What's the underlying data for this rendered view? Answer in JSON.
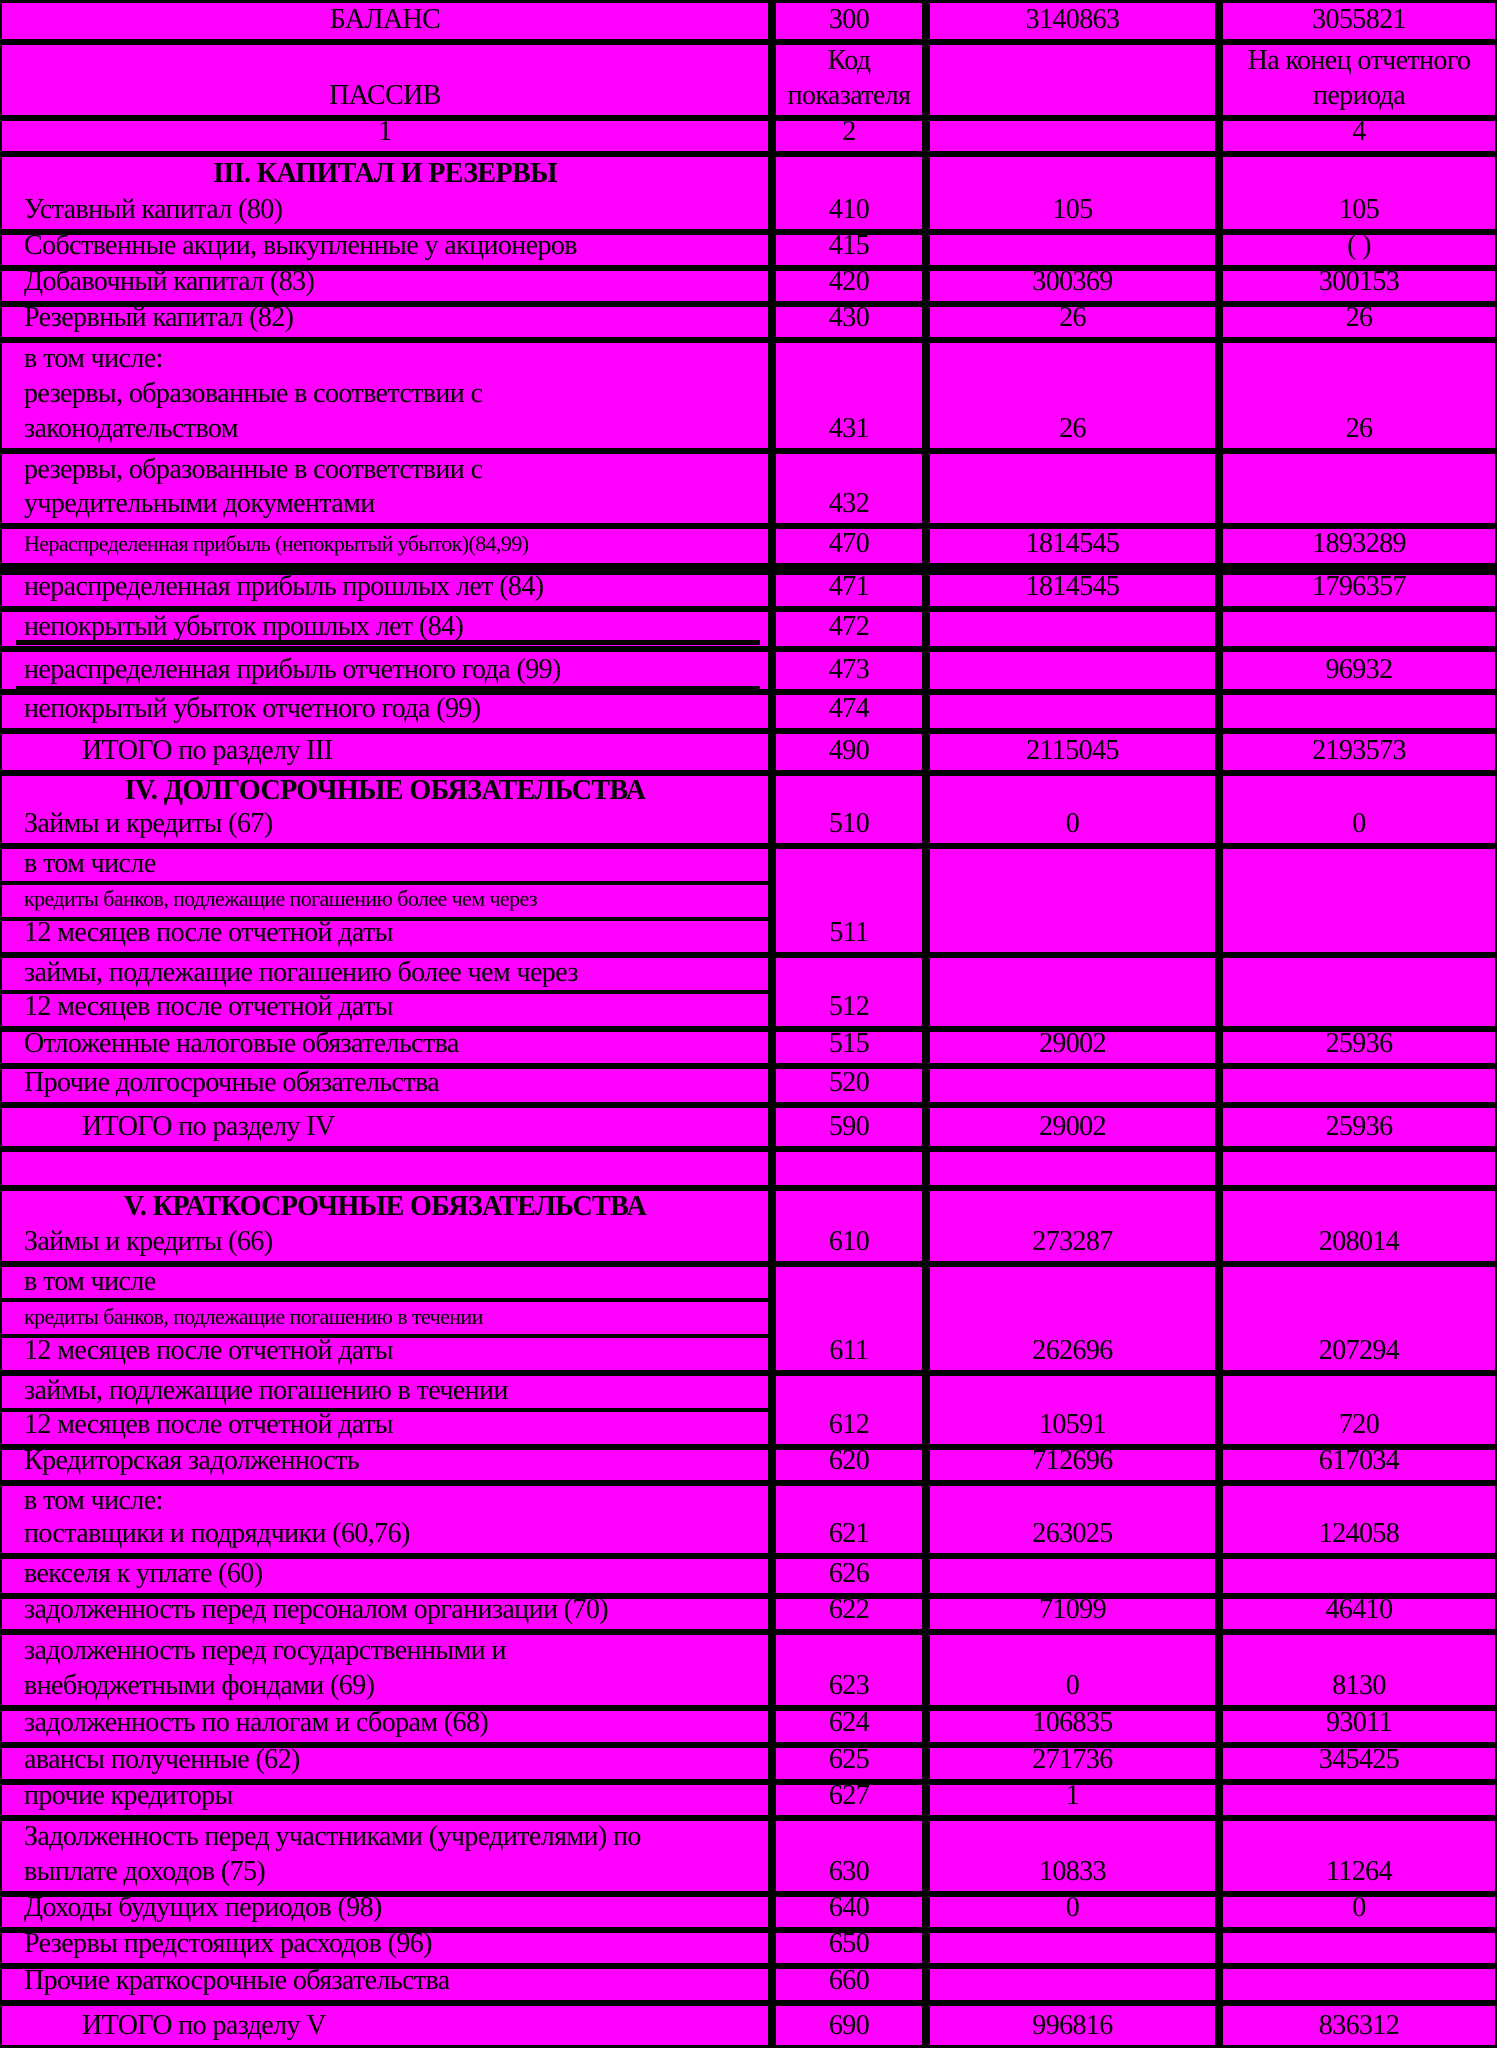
{
  "colors": {
    "cell_background": "#ff00ff",
    "border": "#000000",
    "text": "#000000"
  },
  "rows": [
    {
      "lines": [
        {
          "text": "БАЛАНС",
          "kind": "center"
        }
      ],
      "code": "300",
      "start": "3140863",
      "end": "3055821"
    },
    {
      "lines": [
        {
          "text": "ПАССИВ",
          "kind": "center"
        }
      ],
      "code_lines": [
        "Код",
        "показателя"
      ],
      "start": "",
      "end_lines": [
        "На конец отчетного",
        "периода"
      ]
    },
    {
      "lines": [
        {
          "text": "1",
          "kind": "center"
        }
      ],
      "code": "2",
      "start": "",
      "end": "4"
    },
    {
      "lines": [
        {
          "text": "III. КАПИТАЛ И РЕЗЕРВЫ",
          "kind": "heading"
        },
        {
          "text": "Уставный капитал (80)"
        }
      ],
      "code": "410",
      "start": "105",
      "end": "105"
    },
    {
      "lines": [
        {
          "text": "Собственные акции, выкупленные у акционеров"
        }
      ],
      "code": "415",
      "start": "",
      "end": "(                              )"
    },
    {
      "lines": [
        {
          "text": "Добавочный капитал (83)"
        }
      ],
      "code": "420",
      "start": "300369",
      "end": "300153"
    },
    {
      "lines": [
        {
          "text": "Резервный капитал (82)"
        }
      ],
      "code": "430",
      "start": "26",
      "end": "26"
    },
    {
      "lines": [
        {
          "text": "в том числе:"
        },
        {
          "text": "резервы, образованные в соответствии с"
        },
        {
          "text": "законодательством"
        }
      ],
      "code": "431",
      "start": "26",
      "end": "26"
    },
    {
      "lines": [
        {
          "text": "резервы, образованные в соответствии с"
        },
        {
          "text": "учредительными документами"
        }
      ],
      "code": "432",
      "start": "",
      "end": ""
    },
    {
      "lines": [
        {
          "text": "Нераспределенная прибыль (непокрытый убыток)(84,99)",
          "kind": "small"
        }
      ],
      "code": "470",
      "start": "1814545",
      "end": "1893289"
    },
    {
      "lines": [
        {
          "text": "нераспределенная прибыль прошлых лет (84)"
        }
      ],
      "code": "471",
      "start": "1814545",
      "end": "1796357"
    },
    {
      "lines": [
        {
          "text": "непокрытый убыток прошлых лет (84)"
        }
      ],
      "code": "472",
      "start": "",
      "end": ""
    },
    {
      "lines": [
        {
          "text": "нераспределенная прибыль отчетного года  (99)"
        }
      ],
      "code": "473",
      "start": "",
      "end": "96932"
    },
    {
      "lines": [
        {
          "text": "непокрытый убыток отчетного года (99)"
        }
      ],
      "code": "474",
      "start": "",
      "end": ""
    },
    {
      "lines": [
        {
          "text": "ИТОГО по разделу III",
          "kind": "indent"
        }
      ],
      "code": "490",
      "start": "2115045",
      "end": "2193573"
    },
    {
      "lines": [
        {
          "text": "IV. ДОЛГОСРОЧНЫЕ ОБЯЗАТЕЛЬСТВА",
          "kind": "heading"
        },
        {
          "text": "Займы и кредиты (67)"
        }
      ],
      "code": "510",
      "start": "0",
      "end": "0"
    },
    {
      "lines": [
        {
          "text": "в том числе"
        },
        {
          "text": "кредиты банков, подлежащие погашению более чем через",
          "kind": "small"
        },
        {
          "text": "12 месяцев после отчетной даты"
        }
      ],
      "code": "511",
      "start": "",
      "end": ""
    },
    {
      "lines": [
        {
          "text": "займы, подлежащие погашению более чем через"
        },
        {
          "text": "12 месяцев после отчетной даты"
        }
      ],
      "code": "512",
      "start": "",
      "end": ""
    },
    {
      "lines": [
        {
          "text": "Отложенные налоговые обязательства"
        }
      ],
      "code": "515",
      "start": "29002",
      "end": "25936"
    },
    {
      "lines": [
        {
          "text": "Прочие долгосрочные обязательства"
        }
      ],
      "code": "520",
      "start": "",
      "end": ""
    },
    {
      "lines": [
        {
          "text": "ИТОГО по разделу IV",
          "kind": "indent"
        }
      ],
      "code": "590",
      "start": "29002",
      "end": "25936"
    },
    {
      "lines": [],
      "code": "",
      "start": "",
      "end": ""
    },
    {
      "lines": [
        {
          "text": "V. КРАТКОСРОЧНЫЕ ОБЯЗАТЕЛЬСТВА",
          "kind": "heading"
        },
        {
          "text": "Займы и кредиты (66)"
        }
      ],
      "code": "610",
      "start": "273287",
      "end": "208014"
    },
    {
      "lines": [
        {
          "text": "в том числе"
        },
        {
          "text": "кредиты банков, подлежащие погашению в течении",
          "kind": "small"
        },
        {
          "text": "12 месяцев после отчетной даты"
        }
      ],
      "code": "611",
      "start": "262696",
      "end": "207294"
    },
    {
      "lines": [
        {
          "text": "займы, подлежащие погашению в течении"
        },
        {
          "text": "12 месяцев после отчетной даты"
        }
      ],
      "code": "612",
      "start": "10591",
      "end": "720"
    },
    {
      "lines": [
        {
          "text": "Кредиторская задолженность"
        }
      ],
      "code": "620",
      "start": "712696",
      "end": "617034"
    },
    {
      "lines": [
        {
          "text": "в том числе:"
        },
        {
          "text": "поставщики и подрядчики (60,76)"
        }
      ],
      "code": "621",
      "start": "263025",
      "end": "124058"
    },
    {
      "lines": [
        {
          "text": "векселя к уплате (60)"
        }
      ],
      "code": "626",
      "start": "",
      "end": ""
    },
    {
      "lines": [
        {
          "text": "задолженность перед персоналом организации (70)"
        }
      ],
      "code": "622",
      "start": "71099",
      "end": "46410"
    },
    {
      "lines": [
        {
          "text": "задолженность перед государственными и"
        },
        {
          "text": "внебюджетными фондами (69)"
        }
      ],
      "code": "623",
      "start": "0",
      "end": "8130"
    },
    {
      "lines": [
        {
          "text": "задолженность по налогам и сборам (68)"
        }
      ],
      "code": "624",
      "start": "106835",
      "end": "93011"
    },
    {
      "lines": [
        {
          "text": "авансы полученные (62)"
        }
      ],
      "code": "625",
      "start": "271736",
      "end": "345425"
    },
    {
      "lines": [
        {
          "text": "прочие кредиторы"
        }
      ],
      "code": "627",
      "start": "1",
      "end": ""
    },
    {
      "lines": [
        {
          "text": "Задолженность перед участниками (учредителями) по"
        },
        {
          "text": "выплате доходов (75)"
        }
      ],
      "code": "630",
      "start": "10833",
      "end": "11264"
    },
    {
      "lines": [
        {
          "text": "Доходы будущих периодов (98)"
        }
      ],
      "code": "640",
      "start": "0",
      "end": "0"
    },
    {
      "lines": [
        {
          "text": "Резервы предстоящих расходов (96)"
        }
      ],
      "code": "650",
      "start": "",
      "end": ""
    },
    {
      "lines": [
        {
          "text": "Прочие краткосрочные обязательства"
        }
      ],
      "code": "660",
      "start": "",
      "end": ""
    },
    {
      "lines": [
        {
          "text": "ИТОГО по разделу V",
          "kind": "indent"
        }
      ],
      "code": "690",
      "start": "996816",
      "end": "836312"
    }
  ]
}
